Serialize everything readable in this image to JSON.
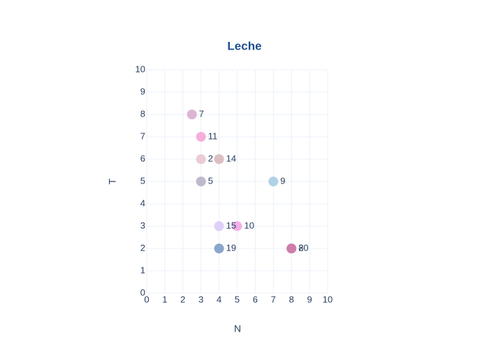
{
  "chart_data": {
    "type": "scatter",
    "title": "Leche",
    "x_label": "N",
    "y_label": "T",
    "x": [
      3,
      3,
      2.5,
      8,
      7,
      5,
      3,
      4,
      4,
      4,
      8
    ],
    "y": [
      6,
      5,
      8,
      2,
      5,
      3,
      7,
      6,
      3,
      2,
      2
    ],
    "text": [
      "2",
      "5",
      "7",
      "8",
      "9",
      "10",
      "11",
      "14",
      "15",
      "19",
      "20"
    ],
    "colors": [
      "#e8c6d2",
      "#b9b1c6",
      "#d8acd0",
      "#c98ab0",
      "#a9cde2",
      "#f4a8e4",
      "#f5a6d8",
      "#d8b7bd",
      "#dccbf6",
      "#7f9cc6",
      "#cf7aa8"
    ],
    "xlim": [
      0,
      10
    ],
    "ylim": [
      0,
      10
    ],
    "xticks": [
      0,
      1,
      2,
      3,
      4,
      5,
      6,
      7,
      8,
      9,
      10
    ],
    "yticks": [
      0,
      1,
      2,
      3,
      4,
      5,
      6,
      7,
      8,
      9,
      10
    ],
    "grid": true
  }
}
